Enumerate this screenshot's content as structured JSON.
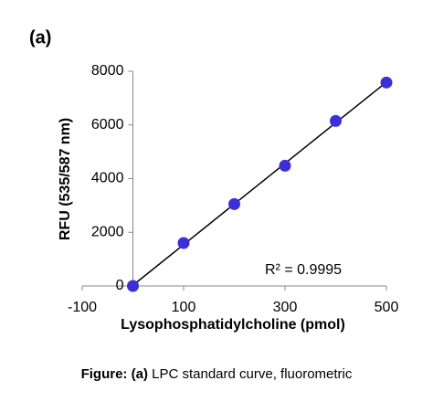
{
  "chart_data": {
    "type": "scatter",
    "panel_label": "(a)",
    "x_label": "Lysophosphatidylcholine (pmol)",
    "y_label": "RFU (535/587 nm)",
    "annotation": "R² = 0.9995",
    "trendline": true,
    "series": [
      {
        "color": "#3b2fd8",
        "x": [
          0,
          100,
          200,
          300,
          400,
          500
        ],
        "values": [
          0,
          1600,
          3050,
          4480,
          6150,
          7580
        ]
      }
    ],
    "xlim": [
      -100,
      500
    ],
    "xticks": [
      -100,
      100,
      300,
      500
    ],
    "ylim": [
      0,
      8000
    ],
    "yticks": [
      0,
      2000,
      4000,
      6000,
      8000
    ],
    "caption": {
      "label": "Figure:",
      "panel": "(a)",
      "text": "LPC standard curve, fluorometric"
    }
  }
}
